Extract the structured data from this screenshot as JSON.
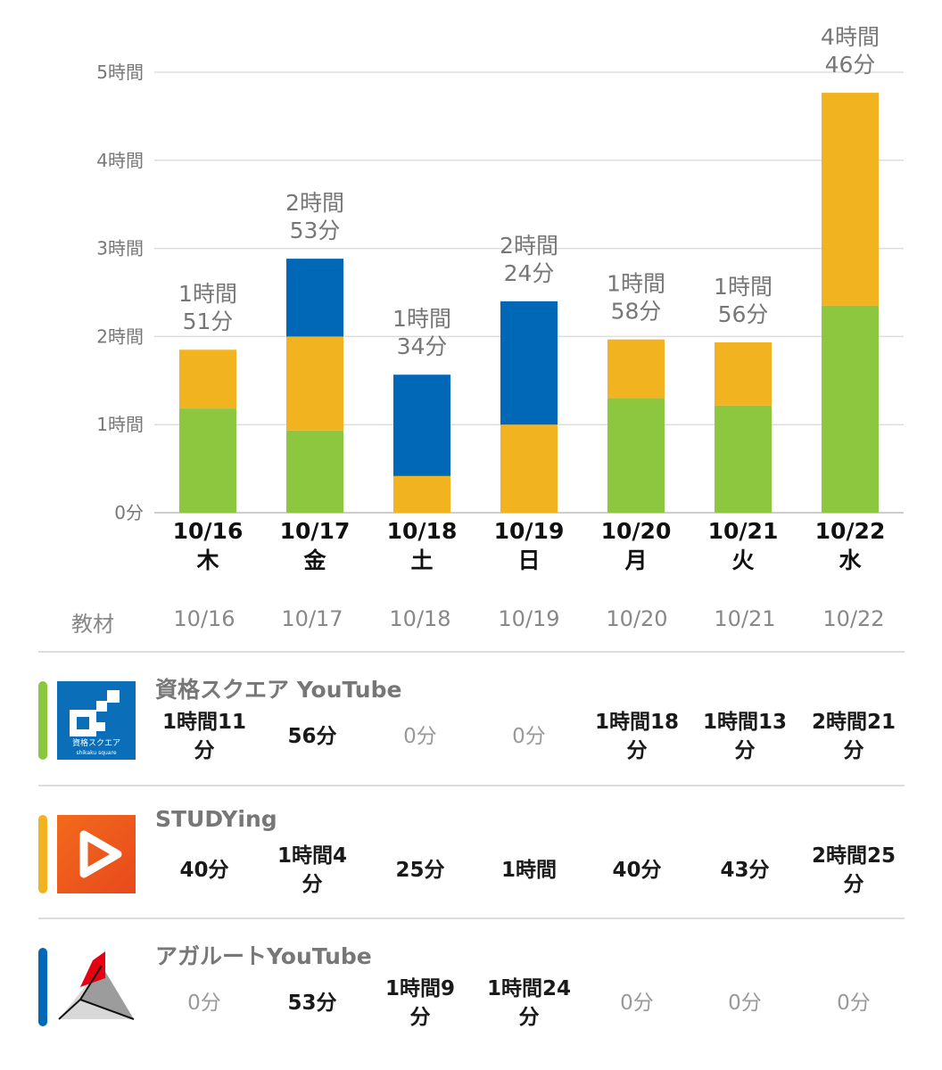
{
  "chart_data": {
    "type": "bar",
    "stacked": true,
    "categories": [
      "10/16",
      "10/17",
      "10/18",
      "10/19",
      "10/20",
      "10/21",
      "10/22"
    ],
    "weekdays": [
      "木",
      "金",
      "土",
      "日",
      "月",
      "火",
      "水"
    ],
    "y_unit": "minutes",
    "ylim": [
      0,
      300
    ],
    "y_ticks": [
      {
        "value": 0,
        "label": "0分"
      },
      {
        "value": 60,
        "label": "1時間"
      },
      {
        "value": 120,
        "label": "2時間"
      },
      {
        "value": 180,
        "label": "3時間"
      },
      {
        "value": 240,
        "label": "4時間"
      },
      {
        "value": 300,
        "label": "5時間"
      }
    ],
    "grid": true,
    "totals": [
      [
        "1時間",
        "51分"
      ],
      [
        "2時間",
        "53分"
      ],
      [
        "1時間",
        "34分"
      ],
      [
        "2時間",
        "24分"
      ],
      [
        "1時間",
        "58分"
      ],
      [
        "1時間",
        "56分"
      ],
      [
        "4時間",
        "46分"
      ]
    ],
    "series": [
      {
        "color": "#8dc63f",
        "values": [
          71,
          56,
          0,
          0,
          78,
          73,
          141
        ]
      },
      {
        "color": "#f2b321",
        "values": [
          40,
          64,
          25,
          60,
          40,
          43,
          145
        ]
      },
      {
        "color": "#0068b7",
        "values": [
          0,
          53,
          69,
          84,
          0,
          0,
          0
        ]
      }
    ]
  },
  "table": {
    "header_label": "教材",
    "dates": [
      "10/16",
      "10/17",
      "10/18",
      "10/19",
      "10/20",
      "10/21",
      "10/22"
    ],
    "materials": [
      {
        "name": "資格スクエア YouTube",
        "stripe_color": "#8dc63f",
        "logo": "shikaku-square-logo",
        "logo_text": "資格スクエア",
        "logo_subtext": "shikaku square",
        "cells": [
          {
            "lines": [
              "1時間11",
              "分"
            ],
            "strong": true
          },
          {
            "lines": [
              "56分"
            ],
            "strong": true
          },
          {
            "lines": [
              "0分"
            ],
            "strong": false
          },
          {
            "lines": [
              "0分"
            ],
            "strong": false
          },
          {
            "lines": [
              "1時間18",
              "分"
            ],
            "strong": true
          },
          {
            "lines": [
              "1時間13",
              "分"
            ],
            "strong": true
          },
          {
            "lines": [
              "2時間21",
              "分"
            ],
            "strong": true
          }
        ]
      },
      {
        "name": "STUDYing",
        "stripe_color": "#f2b321",
        "logo": "studying-play-logo",
        "cells": [
          {
            "lines": [
              "40分"
            ],
            "strong": true
          },
          {
            "lines": [
              "1時間4",
              "分"
            ],
            "strong": true
          },
          {
            "lines": [
              "25分"
            ],
            "strong": true
          },
          {
            "lines": [
              "1時間"
            ],
            "strong": true
          },
          {
            "lines": [
              "40分"
            ],
            "strong": true
          },
          {
            "lines": [
              "43分"
            ],
            "strong": true
          },
          {
            "lines": [
              "2時間25",
              "分"
            ],
            "strong": true
          }
        ]
      },
      {
        "name": "アガルートYouTube",
        "stripe_color": "#0068b7",
        "logo": "agaroot-triangle-logo",
        "cells": [
          {
            "lines": [
              "0分"
            ],
            "strong": false
          },
          {
            "lines": [
              "53分"
            ],
            "strong": true
          },
          {
            "lines": [
              "1時間9",
              "分"
            ],
            "strong": true
          },
          {
            "lines": [
              "1時間24",
              "分"
            ],
            "strong": true
          },
          {
            "lines": [
              "0分"
            ],
            "strong": false
          },
          {
            "lines": [
              "0分"
            ],
            "strong": false
          },
          {
            "lines": [
              "0分"
            ],
            "strong": false
          }
        ]
      }
    ]
  }
}
